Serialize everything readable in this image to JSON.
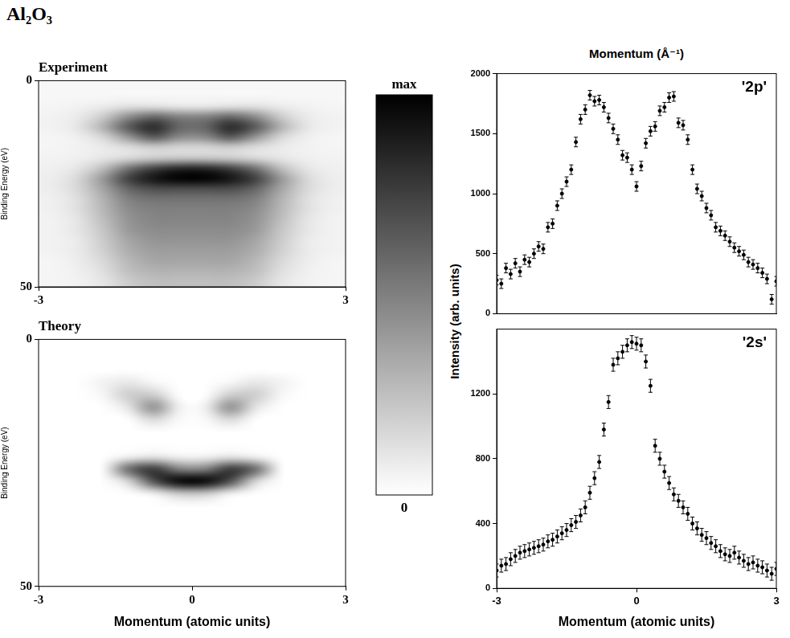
{
  "title": "Al₂O₃",
  "colorbar": {
    "range": [
      0,
      1
    ],
    "ticks": [
      {
        "value": 0,
        "label": "0"
      },
      {
        "value": 1,
        "label": "max"
      }
    ]
  },
  "chart_data": [
    {
      "type": "heatmap",
      "title": "Experiment",
      "ylabel": "Binding Energy (eV)",
      "xlim": [
        -3,
        3
      ],
      "xticks": [
        -3,
        3
      ],
      "ylim": [
        0,
        50
      ],
      "yticks": [
        0,
        50
      ],
      "grid": false,
      "x_bins": [
        -3,
        -2.5,
        -2,
        -1.5,
        -1,
        -0.5,
        0,
        0.5,
        1,
        1.5,
        2,
        2.5,
        3
      ],
      "y_bins": [
        0,
        2.5,
        5,
        7.5,
        10,
        12.5,
        15,
        17.5,
        20,
        22.5,
        25,
        27.5,
        30,
        32.5,
        35,
        37.5,
        40,
        42.5,
        45,
        47.5,
        50
      ],
      "cells": [
        [
          0.03,
          0.03,
          0.03,
          0.03,
          0.03,
          0.03,
          0.03,
          0.03,
          0.03,
          0.03,
          0.03,
          0.03
        ],
        [
          0.03,
          0.03,
          0.03,
          0.03,
          0.03,
          0.03,
          0.03,
          0.03,
          0.03,
          0.03,
          0.03,
          0.03
        ],
        [
          0.04,
          0.05,
          0.08,
          0.12,
          0.12,
          0.1,
          0.1,
          0.12,
          0.12,
          0.08,
          0.05,
          0.04
        ],
        [
          0.05,
          0.08,
          0.2,
          0.45,
          0.6,
          0.5,
          0.5,
          0.6,
          0.45,
          0.2,
          0.08,
          0.05
        ],
        [
          0.05,
          0.1,
          0.3,
          0.65,
          0.85,
          0.6,
          0.6,
          0.85,
          0.65,
          0.3,
          0.1,
          0.05
        ],
        [
          0.04,
          0.06,
          0.15,
          0.4,
          0.65,
          0.45,
          0.45,
          0.65,
          0.4,
          0.15,
          0.06,
          0.04
        ],
        [
          0.04,
          0.05,
          0.08,
          0.12,
          0.18,
          0.15,
          0.15,
          0.18,
          0.12,
          0.08,
          0.05,
          0.04
        ],
        [
          0.05,
          0.06,
          0.1,
          0.15,
          0.2,
          0.22,
          0.22,
          0.2,
          0.15,
          0.1,
          0.06,
          0.05
        ],
        [
          0.06,
          0.1,
          0.25,
          0.55,
          0.75,
          0.85,
          0.85,
          0.75,
          0.55,
          0.25,
          0.1,
          0.06
        ],
        [
          0.07,
          0.15,
          0.4,
          0.75,
          0.92,
          1.0,
          1.0,
          0.92,
          0.75,
          0.4,
          0.15,
          0.07
        ],
        [
          0.07,
          0.15,
          0.35,
          0.6,
          0.7,
          0.7,
          0.7,
          0.7,
          0.6,
          0.35,
          0.15,
          0.07
        ],
        [
          0.06,
          0.12,
          0.3,
          0.5,
          0.55,
          0.55,
          0.55,
          0.55,
          0.5,
          0.3,
          0.12,
          0.06
        ],
        [
          0.06,
          0.12,
          0.28,
          0.45,
          0.5,
          0.5,
          0.5,
          0.5,
          0.45,
          0.28,
          0.12,
          0.06
        ],
        [
          0.05,
          0.1,
          0.25,
          0.42,
          0.48,
          0.48,
          0.48,
          0.48,
          0.42,
          0.25,
          0.1,
          0.05
        ],
        [
          0.05,
          0.1,
          0.22,
          0.4,
          0.45,
          0.45,
          0.45,
          0.45,
          0.4,
          0.22,
          0.1,
          0.05
        ],
        [
          0.05,
          0.08,
          0.2,
          0.35,
          0.42,
          0.42,
          0.42,
          0.42,
          0.35,
          0.2,
          0.08,
          0.05
        ],
        [
          0.05,
          0.08,
          0.18,
          0.32,
          0.38,
          0.38,
          0.38,
          0.38,
          0.32,
          0.18,
          0.08,
          0.05
        ],
        [
          0.04,
          0.07,
          0.15,
          0.28,
          0.35,
          0.35,
          0.35,
          0.35,
          0.28,
          0.15,
          0.07,
          0.04
        ],
        [
          0.04,
          0.06,
          0.12,
          0.25,
          0.3,
          0.3,
          0.3,
          0.3,
          0.25,
          0.12,
          0.06,
          0.04
        ],
        [
          0.04,
          0.05,
          0.1,
          0.2,
          0.25,
          0.25,
          0.25,
          0.25,
          0.2,
          0.1,
          0.05,
          0.04
        ]
      ]
    },
    {
      "type": "heatmap",
      "title": "Theory",
      "xlabel": "Momentum (atomic units)",
      "ylabel": "Binding Energy (eV)",
      "xlim": [
        -3,
        3
      ],
      "xticks": [
        -3,
        0,
        3
      ],
      "ylim": [
        0,
        50
      ],
      "yticks": [
        0,
        50
      ],
      "grid": false,
      "x_bins": [
        -3,
        -2.5,
        -2,
        -1.5,
        -1,
        -0.5,
        0,
        0.5,
        1,
        1.5,
        2,
        2.5,
        3
      ],
      "y_bins": [
        0,
        2.5,
        5,
        7.5,
        10,
        12.5,
        15,
        17.5,
        20,
        22.5,
        25,
        27.5,
        30,
        32.5,
        35,
        37.5,
        40,
        42.5,
        45,
        47.5,
        50
      ],
      "cells": [
        [
          0,
          0,
          0,
          0,
          0,
          0,
          0,
          0,
          0,
          0,
          0,
          0
        ],
        [
          0,
          0,
          0,
          0,
          0,
          0,
          0,
          0,
          0,
          0,
          0,
          0
        ],
        [
          0,
          0,
          0,
          0,
          0,
          0,
          0,
          0,
          0,
          0,
          0,
          0
        ],
        [
          0,
          0,
          0.05,
          0.1,
          0.03,
          0,
          0,
          0.03,
          0.1,
          0.05,
          0,
          0
        ],
        [
          0,
          0,
          0.03,
          0.2,
          0.2,
          0,
          0,
          0.2,
          0.2,
          0.03,
          0,
          0
        ],
        [
          0,
          0,
          0,
          0.1,
          0.45,
          0.05,
          0.05,
          0.45,
          0.1,
          0,
          0,
          0
        ],
        [
          0,
          0,
          0,
          0,
          0.15,
          0.02,
          0.02,
          0.15,
          0,
          0,
          0,
          0
        ],
        [
          0,
          0,
          0,
          0,
          0,
          0,
          0,
          0,
          0,
          0,
          0,
          0
        ],
        [
          0,
          0,
          0,
          0,
          0,
          0,
          0,
          0,
          0,
          0,
          0,
          0
        ],
        [
          0,
          0,
          0,
          0.05,
          0.1,
          0.05,
          0.05,
          0.1,
          0.05,
          0,
          0,
          0
        ],
        [
          0,
          0,
          0,
          0.6,
          0.8,
          0.5,
          0.5,
          0.8,
          0.6,
          0,
          0,
          0
        ],
        [
          0,
          0,
          0,
          0.15,
          0.7,
          1.0,
          1.0,
          0.7,
          0.15,
          0,
          0,
          0
        ],
        [
          0,
          0,
          0,
          0,
          0.05,
          0.2,
          0.2,
          0.05,
          0,
          0,
          0,
          0
        ],
        [
          0,
          0,
          0,
          0,
          0,
          0,
          0,
          0,
          0,
          0,
          0,
          0
        ],
        [
          0,
          0,
          0,
          0,
          0,
          0,
          0,
          0,
          0,
          0,
          0,
          0
        ],
        [
          0,
          0,
          0,
          0,
          0,
          0,
          0,
          0,
          0,
          0,
          0,
          0
        ],
        [
          0,
          0,
          0,
          0,
          0,
          0,
          0,
          0,
          0,
          0,
          0,
          0
        ],
        [
          0,
          0,
          0,
          0,
          0,
          0,
          0,
          0,
          0,
          0,
          0,
          0
        ],
        [
          0,
          0,
          0,
          0,
          0,
          0,
          0,
          0,
          0,
          0,
          0,
          0
        ],
        [
          0,
          0,
          0,
          0,
          0,
          0,
          0,
          0,
          0,
          0,
          0,
          0
        ]
      ]
    },
    {
      "type": "scatter",
      "title": "'2p'",
      "top_xlabel": "Momentum (Å⁻¹)",
      "ylabel": "Intensity (arb. units)",
      "xlim": [
        -3,
        3
      ],
      "ylim": [
        0,
        2000
      ],
      "yticks": [
        0,
        500,
        1000,
        1500,
        2000
      ],
      "tick_labels": "y",
      "grid": false,
      "marker": "circle",
      "color": "#000000",
      "x": [
        -3,
        -2.9,
        -2.8,
        -2.7,
        -2.6,
        -2.5,
        -2.4,
        -2.3,
        -2.2,
        -2.1,
        -2,
        -1.9,
        -1.8,
        -1.7,
        -1.6,
        -1.5,
        -1.4,
        -1.3,
        -1.2,
        -1.1,
        -1,
        -0.9,
        -0.8,
        -0.7,
        -0.6,
        -0.5,
        -0.4,
        -0.3,
        -0.2,
        -0.1,
        0,
        0.1,
        0.2,
        0.3,
        0.4,
        0.5,
        0.6,
        0.7,
        0.8,
        0.9,
        1,
        1.1,
        1.2,
        1.3,
        1.4,
        1.5,
        1.6,
        1.7,
        1.8,
        1.9,
        2,
        2.1,
        2.2,
        2.3,
        2.4,
        2.5,
        2.6,
        2.7,
        2.8,
        2.9,
        3
      ],
      "values": [
        280,
        250,
        380,
        330,
        420,
        350,
        450,
        430,
        500,
        560,
        540,
        720,
        750,
        900,
        1000,
        1100,
        1200,
        1430,
        1620,
        1700,
        1820,
        1770,
        1780,
        1720,
        1630,
        1540,
        1450,
        1320,
        1300,
        1200,
        1060,
        1230,
        1420,
        1520,
        1560,
        1690,
        1720,
        1800,
        1810,
        1590,
        1570,
        1450,
        1200,
        1040,
        980,
        880,
        820,
        720,
        690,
        650,
        600,
        550,
        520,
        490,
        430,
        410,
        380,
        340,
        290,
        120,
        270
      ],
      "errors": [
        40,
        40,
        40,
        40,
        40,
        40,
        40,
        40,
        40,
        40,
        40,
        40,
        40,
        40,
        40,
        40,
        40,
        40,
        40,
        40,
        40,
        40,
        40,
        40,
        40,
        40,
        40,
        40,
        40,
        40,
        40,
        40,
        40,
        40,
        40,
        40,
        40,
        40,
        40,
        40,
        40,
        40,
        40,
        40,
        40,
        40,
        40,
        40,
        40,
        40,
        40,
        40,
        40,
        40,
        40,
        40,
        40,
        40,
        40,
        40,
        40
      ]
    },
    {
      "type": "scatter",
      "title": "'2s'",
      "xlabel": "Momentum (atomic units)",
      "xlim": [
        -3,
        3
      ],
      "xticks": [
        -3,
        0,
        3
      ],
      "ylim": [
        0,
        1600
      ],
      "yticks": [
        0,
        400,
        800,
        1200
      ],
      "grid": false,
      "marker": "circle",
      "color": "#000000",
      "x": [
        -3,
        -2.9,
        -2.8,
        -2.7,
        -2.6,
        -2.5,
        -2.4,
        -2.3,
        -2.2,
        -2.1,
        -2,
        -1.9,
        -1.8,
        -1.7,
        -1.6,
        -1.5,
        -1.4,
        -1.3,
        -1.2,
        -1.1,
        -1,
        -0.9,
        -0.8,
        -0.7,
        -0.6,
        -0.5,
        -0.4,
        -0.3,
        -0.2,
        -0.1,
        0,
        0.1,
        0.2,
        0.3,
        0.4,
        0.5,
        0.6,
        0.7,
        0.8,
        0.9,
        1,
        1.1,
        1.2,
        1.3,
        1.4,
        1.5,
        1.6,
        1.7,
        1.8,
        1.9,
        2,
        2.1,
        2.2,
        2.3,
        2.4,
        2.5,
        2.6,
        2.7,
        2.8,
        2.9,
        3
      ],
      "values": [
        110,
        140,
        150,
        180,
        200,
        220,
        230,
        240,
        250,
        260,
        270,
        290,
        300,
        320,
        340,
        360,
        390,
        410,
        450,
        500,
        590,
        680,
        780,
        980,
        1150,
        1380,
        1420,
        1460,
        1500,
        1520,
        1510,
        1500,
        1400,
        1250,
        880,
        800,
        720,
        650,
        580,
        540,
        500,
        460,
        400,
        370,
        330,
        310,
        280,
        260,
        230,
        210,
        200,
        220,
        190,
        170,
        150,
        160,
        140,
        130,
        110,
        90,
        120
      ],
      "errors": [
        40,
        40,
        40,
        40,
        40,
        40,
        40,
        40,
        40,
        40,
        40,
        40,
        40,
        40,
        40,
        40,
        40,
        40,
        40,
        40,
        40,
        40,
        40,
        40,
        40,
        40,
        40,
        40,
        40,
        40,
        40,
        40,
        40,
        40,
        40,
        40,
        40,
        40,
        40,
        40,
        40,
        40,
        40,
        40,
        40,
        40,
        40,
        40,
        40,
        40,
        40,
        40,
        40,
        40,
        40,
        40,
        40,
        40,
        40,
        40,
        40
      ]
    }
  ]
}
